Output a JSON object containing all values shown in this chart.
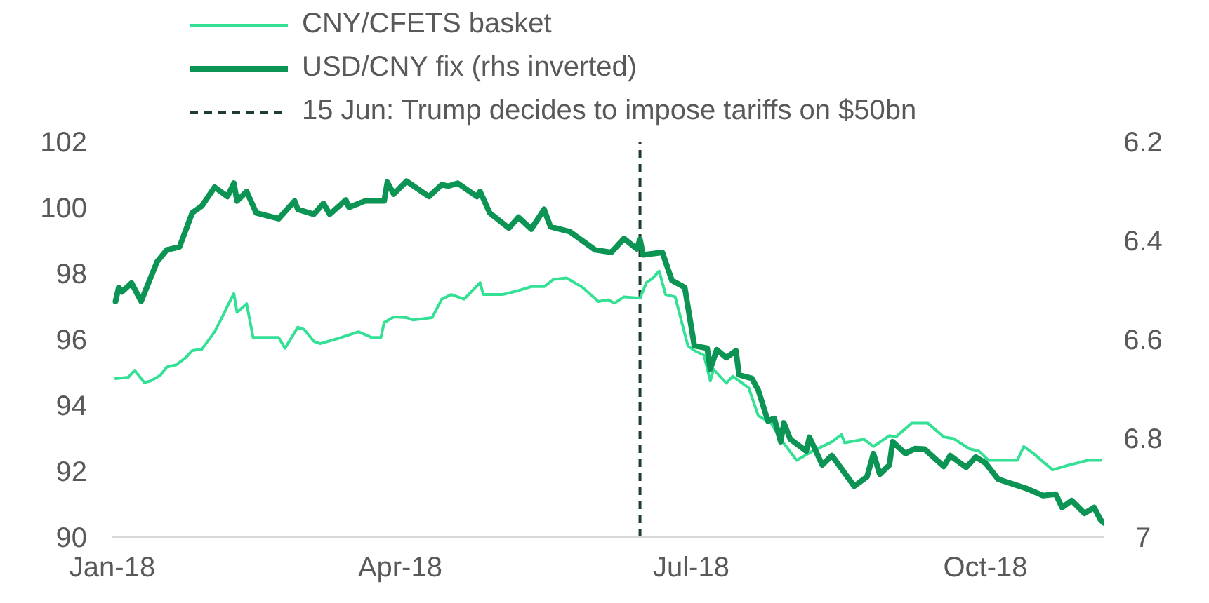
{
  "chart_data": {
    "type": "line",
    "legend": "top left",
    "marker": "none",
    "line_style": "solid",
    "xlim": [
      "2018-01-01",
      "2018-11-07"
    ],
    "xticks": [
      {
        "value": "2018-01-01",
        "label": "Jan-18"
      },
      {
        "value": "2018-04-01",
        "label": "Apr-18"
      },
      {
        "value": "2018-07-01",
        "label": "Jul-18"
      },
      {
        "value": "2018-10-01",
        "label": "Oct-18"
      }
    ],
    "ylim": [
      90,
      102
    ],
    "yticks": [
      90,
      92,
      94,
      96,
      98,
      100,
      102
    ],
    "y2lim": [
      7,
      6.2
    ],
    "y2ticks": [
      6.2,
      6.4,
      6.6,
      6.8,
      7
    ],
    "ref_lines": [
      {
        "axis": "x",
        "value": "2018-06-15",
        "label": "15 Jun: Trump decides to impose tariffs on $50bn",
        "color": "#1c3d30",
        "line_style": "dashed"
      }
    ],
    "series": [
      {
        "name": "CNY/CFETS basket",
        "color": "#33e094",
        "x": [
          "2018-01-02",
          "2018-01-06",
          "2018-01-08",
          "2018-01-11",
          "2018-01-13",
          "2018-01-16",
          "2018-01-18",
          "2018-01-21",
          "2018-01-24",
          "2018-01-26",
          "2018-01-29",
          "2018-02-02",
          "2018-02-05",
          "2018-02-06",
          "2018-02-08",
          "2018-02-09",
          "2018-02-12",
          "2018-02-14",
          "2018-02-22",
          "2018-02-24",
          "2018-02-28",
          "2018-03-02",
          "2018-03-05",
          "2018-03-07",
          "2018-03-12",
          "2018-03-19",
          "2018-03-23",
          "2018-03-26",
          "2018-03-27",
          "2018-03-30",
          "2018-04-03",
          "2018-04-05",
          "2018-04-11",
          "2018-04-14",
          "2018-04-17",
          "2018-04-21",
          "2018-04-26",
          "2018-04-27",
          "2018-05-03",
          "2018-05-08",
          "2018-05-12",
          "2018-05-16",
          "2018-05-19",
          "2018-05-23",
          "2018-05-28",
          "2018-06-02",
          "2018-06-05",
          "2018-06-07",
          "2018-06-10",
          "2018-06-15",
          "2018-06-17",
          "2018-06-19",
          "2018-06-21",
          "2018-06-23",
          "2018-06-26",
          "2018-06-30",
          "2018-07-02",
          "2018-07-05",
          "2018-07-07",
          "2018-07-08",
          "2018-07-12",
          "2018-07-14",
          "2018-07-19",
          "2018-07-22",
          "2018-07-26",
          "2018-07-29",
          "2018-08-03",
          "2018-08-08",
          "2018-08-14",
          "2018-08-17",
          "2018-08-18",
          "2018-08-24",
          "2018-08-27",
          "2018-09-01",
          "2018-09-03",
          "2018-09-08",
          "2018-09-13",
          "2018-09-18",
          "2018-09-21",
          "2018-09-26",
          "2018-09-29",
          "2018-10-02",
          "2018-10-11",
          "2018-10-13",
          "2018-10-16",
          "2018-10-22",
          "2018-10-27",
          "2018-11-02",
          "2018-11-06"
        ],
        "values": [
          94.81,
          94.85,
          95.06,
          94.69,
          94.74,
          94.91,
          95.16,
          95.23,
          95.45,
          95.66,
          95.7,
          96.23,
          96.8,
          97.01,
          97.39,
          96.82,
          97.08,
          96.06,
          96.06,
          95.73,
          96.37,
          96.3,
          95.94,
          95.87,
          96.01,
          96.23,
          96.06,
          96.06,
          96.51,
          96.68,
          96.66,
          96.59,
          96.66,
          97.22,
          97.36,
          97.22,
          97.72,
          97.36,
          97.36,
          97.48,
          97.6,
          97.6,
          97.82,
          97.86,
          97.58,
          97.15,
          97.2,
          97.1,
          97.29,
          97.25,
          97.72,
          97.86,
          98.07,
          97.36,
          97.29,
          95.8,
          95.66,
          95.52,
          94.74,
          95.09,
          94.67,
          94.88,
          94.53,
          93.68,
          93.46,
          92.97,
          92.33,
          92.61,
          92.89,
          93.11,
          92.86,
          92.97,
          92.75,
          93.08,
          93.04,
          93.46,
          93.46,
          93.04,
          92.99,
          92.68,
          92.61,
          92.33,
          92.33,
          92.75,
          92.54,
          92.04,
          92.18,
          92.33,
          92.33
        ]
      },
      {
        "name": "USD/CNY fix (rhs inverted)",
        "color": "#0c9455",
        "axis": "y2",
        "x": [
          "2018-01-02",
          "2018-01-03",
          "2018-01-04",
          "2018-01-07",
          "2018-01-10",
          "2018-01-15",
          "2018-01-18",
          "2018-01-22",
          "2018-01-26",
          "2018-01-29",
          "2018-02-02",
          "2018-02-06",
          "2018-02-08",
          "2018-02-09",
          "2018-02-12",
          "2018-02-15",
          "2018-02-22",
          "2018-02-27",
          "2018-02-28",
          "2018-03-05",
          "2018-03-08",
          "2018-03-10",
          "2018-03-15",
          "2018-03-16",
          "2018-03-21",
          "2018-03-27",
          "2018-03-28",
          "2018-03-30",
          "2018-04-03",
          "2018-04-10",
          "2018-04-14",
          "2018-04-16",
          "2018-04-19",
          "2018-04-25",
          "2018-04-26",
          "2018-04-29",
          "2018-05-05",
          "2018-05-08",
          "2018-05-12",
          "2018-05-16",
          "2018-05-18",
          "2018-05-24",
          "2018-06-01",
          "2018-06-06",
          "2018-06-10",
          "2018-06-14",
          "2018-06-15",
          "2018-06-16",
          "2018-06-22",
          "2018-06-25",
          "2018-06-29",
          "2018-07-02",
          "2018-07-06",
          "2018-07-07",
          "2018-07-09",
          "2018-07-12",
          "2018-07-15",
          "2018-07-16",
          "2018-07-20",
          "2018-07-22",
          "2018-07-25",
          "2018-07-27",
          "2018-07-29",
          "2018-07-30",
          "2018-08-01",
          "2018-08-06",
          "2018-08-07",
          "2018-08-11",
          "2018-08-14",
          "2018-08-21",
          "2018-08-25",
          "2018-08-27",
          "2018-08-29",
          "2018-09-01",
          "2018-09-02",
          "2018-09-06",
          "2018-09-09",
          "2018-09-12",
          "2018-09-18",
          "2018-09-20",
          "2018-09-25",
          "2018-09-28",
          "2018-10-01",
          "2018-10-05",
          "2018-10-14",
          "2018-10-19",
          "2018-10-23",
          "2018-10-25",
          "2018-10-28",
          "2018-11-01",
          "2018-11-04",
          "2018-11-06",
          "2018-11-07"
        ],
        "values": [
          6.523,
          6.495,
          6.504,
          6.486,
          6.523,
          6.443,
          6.419,
          6.413,
          6.344,
          6.33,
          6.292,
          6.311,
          6.284,
          6.32,
          6.301,
          6.344,
          6.356,
          6.32,
          6.337,
          6.347,
          6.325,
          6.347,
          6.318,
          6.333,
          6.32,
          6.32,
          6.282,
          6.306,
          6.28,
          6.311,
          6.287,
          6.29,
          6.284,
          6.311,
          6.301,
          6.344,
          6.375,
          6.353,
          6.377,
          6.337,
          6.372,
          6.382,
          6.419,
          6.424,
          6.396,
          6.417,
          6.398,
          6.429,
          6.424,
          6.481,
          6.495,
          6.613,
          6.618,
          6.66,
          6.621,
          6.637,
          6.623,
          6.672,
          6.679,
          6.703,
          6.765,
          6.76,
          6.807,
          6.769,
          6.802,
          6.826,
          6.798,
          6.854,
          6.835,
          6.897,
          6.878,
          6.831,
          6.873,
          6.854,
          6.807,
          6.831,
          6.821,
          6.822,
          6.857,
          6.835,
          6.859,
          6.838,
          6.85,
          6.883,
          6.902,
          6.916,
          6.913,
          6.94,
          6.926,
          6.952,
          6.94,
          6.965,
          6.971
        ]
      }
    ]
  }
}
